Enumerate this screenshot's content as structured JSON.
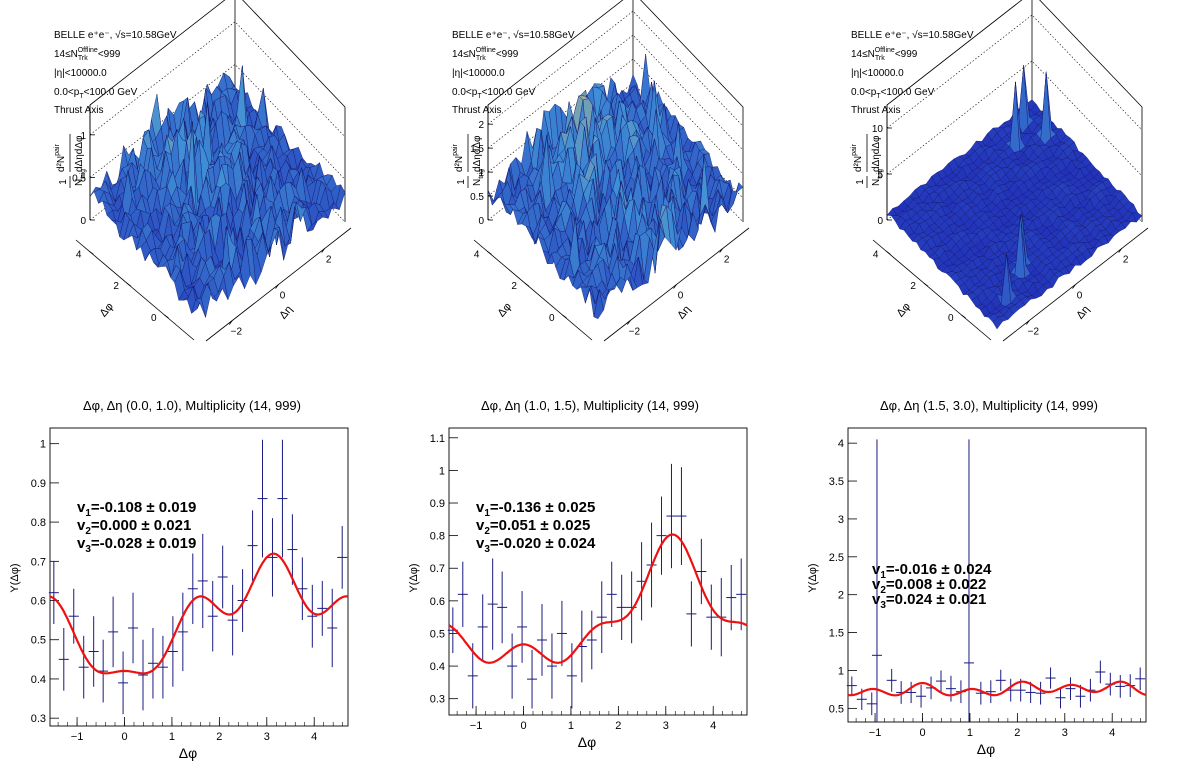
{
  "colors": {
    "surface_low": "#1f2bb8",
    "surface_mid": "#3f8fd6",
    "surface_high": "#e9c96a",
    "fit": "#ee1111",
    "points": "#1a1a80"
  },
  "labels": {
    "belle": "BELLE e⁺e⁻, √s=10.58GeV",
    "ntrk_pre": "14≤N",
    "ntrk_sub": "Trk",
    "ntrk_sup": "Offline",
    "ntrk_post": "<999",
    "eta": "|η|<10000.0",
    "pt_pre": "0.0<p",
    "pt_sub": "T",
    "pt_post": "<100.0 GeV",
    "thrust": "Thrust Axis",
    "zlabel": "1/N^trig d²N^pair/dΔηdΔφ",
    "z_one": "1",
    "z_num": "d²N",
    "z_num_sup": "pair",
    "z_den_n": "N",
    "z_den_sub": "trig",
    "z_den_rest": "dΔηdΔφ",
    "dphi": "Δφ",
    "deta": "Δη",
    "ylabel": "Y(Δφ)"
  },
  "surfaces": [
    {
      "z_ticks": [
        "0",
        "0.5",
        "1"
      ],
      "z_tick_vals": [
        0,
        0.5,
        1
      ],
      "z_max": 1.35,
      "dphi_ticks": [
        "0",
        "2",
        "4"
      ],
      "deta_ticks": [
        "−2",
        "0",
        "2"
      ],
      "flat": false
    },
    {
      "z_ticks": [
        "0",
        "0.5",
        "1",
        "1.5",
        "2"
      ],
      "z_tick_vals": [
        0,
        0.5,
        1,
        1.5,
        2
      ],
      "z_max": 2.4,
      "dphi_ticks": [
        "0",
        "2",
        "4"
      ],
      "deta_ticks": [
        "−2",
        "0",
        "2"
      ],
      "flat": false
    },
    {
      "z_ticks": [
        "0",
        "5",
        "10"
      ],
      "z_tick_vals": [
        0,
        5,
        10
      ],
      "z_max": 12.5,
      "dphi_ticks": [
        "0",
        "2",
        "4"
      ],
      "deta_ticks": [
        "−2",
        "0",
        "2"
      ],
      "flat": true
    }
  ],
  "chart_data": [
    {
      "type": "scatter",
      "title": "Δφ, Δη (0.0, 1.0), Multiplicity (14, 999)",
      "xlabel": "Δφ",
      "ylabel": "Y(Δφ)",
      "xlim": [
        -1.5708,
        4.7124
      ],
      "ylim": [
        0.28,
        1.04
      ],
      "x_ticks": [
        -1,
        0,
        1,
        2,
        3,
        4
      ],
      "y_ticks": [
        0.3,
        0.4,
        0.5,
        0.6,
        0.7,
        0.8,
        0.9,
        1.0
      ],
      "y_tick_labels": [
        "0.3",
        "0.4",
        "0.5",
        "0.6",
        "0.7",
        "0.8",
        "0.9",
        "1"
      ],
      "fit": {
        "a0": 0.55,
        "a1": -0.108,
        "a2": 0.0,
        "a3": -0.028,
        "a4": 0.09,
        "color": "#ee1111"
      },
      "annotations": [
        "v₁=-0.108 ± 0.019",
        "v₂=0.000 ± 0.021",
        "v₃=-0.028 ± 0.019"
      ],
      "ann_pre": [
        "v",
        "v",
        "v"
      ],
      "ann_sub": [
        "1",
        "2",
        "3"
      ],
      "ann_rest": [
        "=-0.108 ± 0.019",
        "=0.000 ± 0.021",
        "=-0.028 ± 0.019"
      ],
      "points": [
        {
          "x": -1.49,
          "y": 0.62,
          "e": 0.08
        },
        {
          "x": -1.28,
          "y": 0.45,
          "e": 0.08
        },
        {
          "x": -1.07,
          "y": 0.56,
          "e": 0.07
        },
        {
          "x": -0.86,
          "y": 0.43,
          "e": 0.08
        },
        {
          "x": -0.65,
          "y": 0.47,
          "e": 0.09
        },
        {
          "x": -0.45,
          "y": 0.42,
          "e": 0.08
        },
        {
          "x": -0.24,
          "y": 0.52,
          "e": 0.09
        },
        {
          "x": -0.03,
          "y": 0.39,
          "e": 0.08
        },
        {
          "x": 0.18,
          "y": 0.53,
          "e": 0.09
        },
        {
          "x": 0.39,
          "y": 0.41,
          "e": 0.09
        },
        {
          "x": 0.6,
          "y": 0.44,
          "e": 0.09
        },
        {
          "x": 0.81,
          "y": 0.43,
          "e": 0.08
        },
        {
          "x": 1.02,
          "y": 0.47,
          "e": 0.09
        },
        {
          "x": 1.23,
          "y": 0.52,
          "e": 0.1
        },
        {
          "x": 1.44,
          "y": 0.63,
          "e": 0.09
        },
        {
          "x": 1.65,
          "y": 0.65,
          "e": 0.12
        },
        {
          "x": 1.86,
          "y": 0.56,
          "e": 0.09
        },
        {
          "x": 2.07,
          "y": 0.66,
          "e": 0.08
        },
        {
          "x": 2.28,
          "y": 0.55,
          "e": 0.09
        },
        {
          "x": 2.49,
          "y": 0.6,
          "e": 0.08
        },
        {
          "x": 2.7,
          "y": 0.74,
          "e": 0.09
        },
        {
          "x": 2.91,
          "y": 0.86,
          "e": 0.15
        },
        {
          "x": 3.12,
          "y": 0.71,
          "e": 0.1
        },
        {
          "x": 3.33,
          "y": 0.86,
          "e": 0.15
        },
        {
          "x": 3.54,
          "y": 0.73,
          "e": 0.09
        },
        {
          "x": 3.75,
          "y": 0.63,
          "e": 0.08
        },
        {
          "x": 3.96,
          "y": 0.56,
          "e": 0.08
        },
        {
          "x": 4.17,
          "y": 0.58,
          "e": 0.07
        },
        {
          "x": 4.38,
          "y": 0.53,
          "e": 0.1
        },
        {
          "x": 4.59,
          "y": 0.71,
          "e": 0.08
        }
      ]
    },
    {
      "type": "scatter",
      "title": "Δφ, Δη (1.0, 1.5), Multiplicity (14, 999)",
      "xlabel": "Δφ",
      "ylabel": "Y(Δφ)",
      "xlim": [
        -1.5708,
        4.7124
      ],
      "ylim": [
        0.25,
        1.13
      ],
      "x_ticks": [
        -1,
        0,
        1,
        2,
        3,
        4
      ],
      "y_ticks": [
        0.3,
        0.4,
        0.5,
        0.6,
        0.7,
        0.8,
        0.9,
        1.0,
        1.1
      ],
      "y_tick_labels": [
        "0.3",
        "0.4",
        "0.5",
        "0.6",
        "0.7",
        "0.8",
        "0.9",
        "1",
        "1.1"
      ],
      "fit": {
        "a0": 0.54,
        "a1": -0.136,
        "a2": 0.051,
        "a3": -0.02,
        "a4": 0.085,
        "color": "#ee1111"
      },
      "annotations": [
        "v₁=-0.136 ± 0.025",
        "v₂=0.051 ± 0.025",
        "v₃=-0.020 ± 0.024"
      ],
      "ann_pre": [
        "v",
        "v",
        "v"
      ],
      "ann_sub": [
        "1",
        "2",
        "3"
      ],
      "ann_rest": [
        "=-0.136 ± 0.025",
        "=0.051 ± 0.025",
        "=-0.020 ± 0.024"
      ],
      "points": [
        {
          "x": -1.49,
          "y": 0.51,
          "e": 0.07
        },
        {
          "x": -1.28,
          "y": 0.62,
          "e": 0.1
        },
        {
          "x": -1.07,
          "y": 0.37,
          "e": 0.1
        },
        {
          "x": -0.86,
          "y": 0.52,
          "e": 0.1
        },
        {
          "x": -0.65,
          "y": 0.59,
          "e": 0.14
        },
        {
          "x": -0.45,
          "y": 0.58,
          "e": 0.11
        },
        {
          "x": -0.24,
          "y": 0.4,
          "e": 0.1
        },
        {
          "x": -0.03,
          "y": 0.52,
          "e": 0.11
        },
        {
          "x": 0.18,
          "y": 0.36,
          "e": 0.09
        },
        {
          "x": 0.39,
          "y": 0.48,
          "e": 0.11
        },
        {
          "x": 0.6,
          "y": 0.4,
          "e": 0.1
        },
        {
          "x": 0.81,
          "y": 0.5,
          "e": 0.1
        },
        {
          "x": 1.02,
          "y": 0.37,
          "e": 0.1
        },
        {
          "x": 1.23,
          "y": 0.46,
          "e": 0.11
        },
        {
          "x": 1.44,
          "y": 0.48,
          "e": 0.09
        },
        {
          "x": 1.65,
          "y": 0.55,
          "e": 0.11
        },
        {
          "x": 1.86,
          "y": 0.62,
          "e": 0.1
        },
        {
          "x": 2.07,
          "y": 0.58,
          "e": 0.1
        },
        {
          "x": 2.28,
          "y": 0.58,
          "e": 0.11
        },
        {
          "x": 2.49,
          "y": 0.66,
          "e": 0.12
        },
        {
          "x": 2.7,
          "y": 0.71,
          "e": 0.13
        },
        {
          "x": 2.91,
          "y": 0.8,
          "e": 0.12
        },
        {
          "x": 3.12,
          "y": 0.86,
          "e": 0.16
        },
        {
          "x": 3.33,
          "y": 0.86,
          "e": 0.15
        },
        {
          "x": 3.54,
          "y": 0.56,
          "e": 0.1
        },
        {
          "x": 3.75,
          "y": 0.69,
          "e": 0.1
        },
        {
          "x": 3.96,
          "y": 0.55,
          "e": 0.1
        },
        {
          "x": 4.17,
          "y": 0.55,
          "e": 0.12
        },
        {
          "x": 4.38,
          "y": 0.61,
          "e": 0.1
        },
        {
          "x": 4.59,
          "y": 0.62,
          "e": 0.11
        }
      ]
    },
    {
      "type": "scatter",
      "title": "Δφ, Δη (1.5, 3.0), Multiplicity (14, 999)",
      "xlabel": "Δφ",
      "ylabel": "Y(Δφ)",
      "xlim": [
        -1.5708,
        4.7124
      ],
      "ylim": [
        0.32,
        4.2
      ],
      "x_ticks": [
        -1,
        0,
        1,
        2,
        3,
        4
      ],
      "y_ticks": [
        0.5,
        1.0,
        1.5,
        2.0,
        2.5,
        3.0,
        3.5,
        4.0
      ],
      "y_tick_labels": [
        "0.5",
        "1",
        "1.5",
        "2",
        "2.5",
        "3",
        "3.5",
        "4"
      ],
      "fit": {
        "a0": 0.75,
        "a1": -0.016,
        "a2": 0.008,
        "a3": 0.024,
        "a4": 0.06,
        "color": "#ee1111"
      },
      "annotations": [
        "v₁=-0.016 ± 0.024",
        "v₂=0.008 ± 0.022",
        "v₃=0.024 ± 0.021"
      ],
      "ann_pre": [
        "v",
        "v",
        "v"
      ],
      "ann_sub": [
        "1",
        "2",
        "3"
      ],
      "ann_rest": [
        "=-0.016 ± 0.024",
        "=0.008 ± 0.022",
        "=0.024 ± 0.021"
      ],
      "points": [
        {
          "x": -1.49,
          "y": 0.8,
          "e": 0.12
        },
        {
          "x": -1.28,
          "y": 0.62,
          "e": 0.14
        },
        {
          "x": -1.07,
          "y": 0.56,
          "e": 0.15
        },
        {
          "x": -0.96,
          "y": 1.2,
          "e": 2.85
        },
        {
          "x": -0.65,
          "y": 0.87,
          "e": 0.15
        },
        {
          "x": -0.45,
          "y": 0.71,
          "e": 0.15
        },
        {
          "x": -0.24,
          "y": 0.71,
          "e": 0.14
        },
        {
          "x": -0.03,
          "y": 0.66,
          "e": 0.15
        },
        {
          "x": 0.18,
          "y": 0.77,
          "e": 0.15
        },
        {
          "x": 0.39,
          "y": 0.86,
          "e": 0.14
        },
        {
          "x": 0.6,
          "y": 0.76,
          "e": 0.17
        },
        {
          "x": 0.81,
          "y": 0.72,
          "e": 0.15
        },
        {
          "x": 0.98,
          "y": 1.1,
          "e": 2.95
        },
        {
          "x": 1.23,
          "y": 0.7,
          "e": 0.15
        },
        {
          "x": 1.44,
          "y": 0.72,
          "e": 0.15
        },
        {
          "x": 1.65,
          "y": 0.87,
          "e": 0.14
        },
        {
          "x": 1.86,
          "y": 0.74,
          "e": 0.15
        },
        {
          "x": 2.07,
          "y": 0.74,
          "e": 0.15
        },
        {
          "x": 2.28,
          "y": 0.71,
          "e": 0.14
        },
        {
          "x": 2.49,
          "y": 0.7,
          "e": 0.15
        },
        {
          "x": 2.7,
          "y": 0.9,
          "e": 0.14
        },
        {
          "x": 2.91,
          "y": 0.64,
          "e": 0.14
        },
        {
          "x": 3.12,
          "y": 0.76,
          "e": 0.15
        },
        {
          "x": 3.33,
          "y": 0.66,
          "e": 0.15
        },
        {
          "x": 3.54,
          "y": 0.74,
          "e": 0.15
        },
        {
          "x": 3.75,
          "y": 0.98,
          "e": 0.15
        },
        {
          "x": 3.96,
          "y": 0.82,
          "e": 0.15
        },
        {
          "x": 4.17,
          "y": 0.79,
          "e": 0.15
        },
        {
          "x": 4.38,
          "y": 0.8,
          "e": 0.15
        },
        {
          "x": 4.59,
          "y": 0.89,
          "e": 0.15
        }
      ]
    }
  ]
}
